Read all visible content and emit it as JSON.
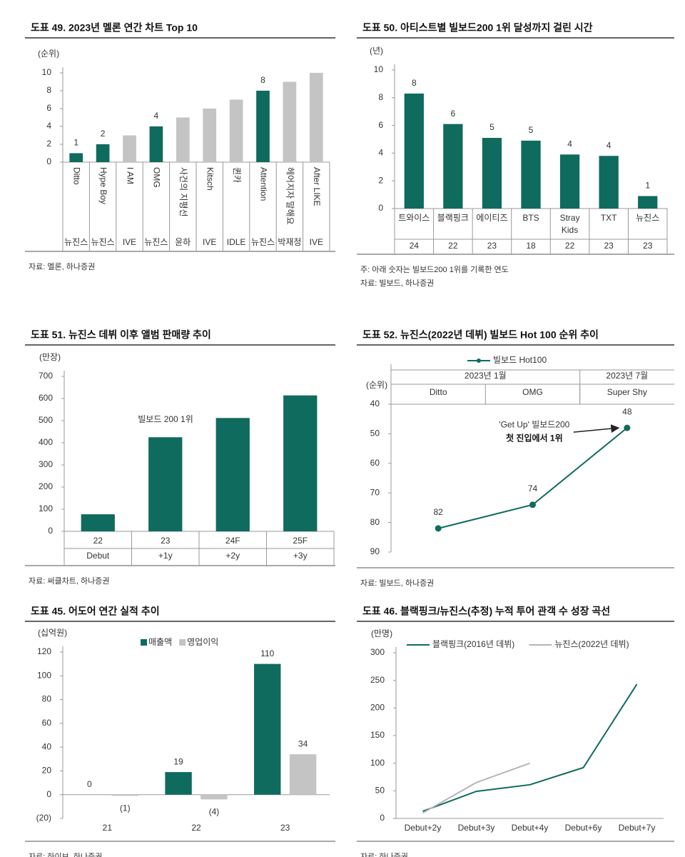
{
  "chart_data": [
    {
      "type": "bar",
      "title": "도표 49. 2023년 멜론 연간 차트 Top 10",
      "y_label": "(순위)",
      "categories": [
        "Ditto",
        "Hype Boy",
        "I AM",
        "OMG",
        "사건의 지평선",
        "Kitsch",
        "퀸카",
        "Attention",
        "헤어지자 말해요",
        "After LIKE"
      ],
      "sublabels": [
        "뉴진스",
        "뉴진스",
        "IVE",
        "뉴진스",
        "윤하",
        "IVE",
        "IDLE",
        "뉴진스",
        "박재정",
        "IVE"
      ],
      "values": [
        1,
        2,
        3,
        4,
        5,
        6,
        7,
        8,
        9,
        10
      ],
      "value_labels": [
        "1",
        "2",
        null,
        "4",
        null,
        null,
        null,
        "8",
        null,
        null
      ],
      "colors": [
        "#0f6b5e",
        "#0f6b5e",
        "#c4c4c4",
        "#0f6b5e",
        "#c4c4c4",
        "#c4c4c4",
        "#c4c4c4",
        "#0f6b5e",
        "#c4c4c4",
        "#c4c4c4"
      ],
      "rotate_labels": true,
      "ylim": [
        0,
        10
      ],
      "yticks": [
        0,
        2,
        4,
        6,
        8,
        10
      ],
      "source": "자료: 멜론, 하나증권"
    },
    {
      "type": "bar",
      "title": "도표 50. 아티스트별 빌보드200 1위 달성까지 걸린 시간",
      "y_label": "(년)",
      "categories": [
        "트와이스",
        "블랙핑크",
        "에이티즈",
        "BTS",
        "Stray Kids",
        "TXT",
        "뉴진스"
      ],
      "sublabels": [
        "24",
        "22",
        "23",
        "18",
        "22",
        "23",
        "23"
      ],
      "values": [
        8.3,
        6.1,
        5.1,
        4.9,
        3.9,
        3.8,
        0.9
      ],
      "value_labels": [
        "8",
        "6",
        "5",
        "5",
        "4",
        "4",
        "1"
      ],
      "color": "#0f6b5e",
      "ylim": [
        0,
        10
      ],
      "yticks": [
        0,
        2,
        4,
        6,
        8,
        10
      ],
      "note": "주: 아래 숫자는 빌보드200 1위를 기록한 연도",
      "source": "자료: 빌보드, 하나증권"
    },
    {
      "type": "bar",
      "title": "도표 51. 뉴진스 데뷔 이후 앨범 판매량 추이",
      "y_label": "(만장)",
      "categories": [
        "22",
        "23",
        "24F",
        "25F"
      ],
      "sublabels": [
        "Debut",
        "+1y",
        "+2y",
        "+3y"
      ],
      "values": [
        77,
        425,
        512,
        614
      ],
      "color": "#0f6b5e",
      "annotation": "빌보드 200 1위",
      "ylim": [
        0,
        700
      ],
      "yticks": [
        0,
        100,
        200,
        300,
        400,
        500,
        600,
        700
      ],
      "source": "자료: 써클차트, 하나증권"
    },
    {
      "type": "line",
      "title": "도표 52. 뉴진스(2022년 데뷔) 빌보드 Hot 100 순위 추이",
      "y_label": "(순위)",
      "categories": [
        "Ditto",
        "OMG",
        "Super Shy"
      ],
      "groups": [
        {
          "label": "2023년 1월",
          "span": 2
        },
        {
          "label": "2023년 7월",
          "span": 1
        }
      ],
      "series": [
        {
          "name": "빌보드 Hot100",
          "color": "#0f6b5e",
          "values": [
            82,
            74,
            48
          ],
          "markers": true
        }
      ],
      "data_labels": true,
      "annotations": [
        "'Get Up' 빌보드200",
        "첫 진입에서 1위"
      ],
      "ylim": [
        90,
        40
      ],
      "yticks": [
        40,
        50,
        60,
        70,
        80,
        90
      ],
      "legend": "top",
      "source": "자료: 빌보드, 하나증권"
    },
    {
      "type": "bar",
      "title": "도표 45. 어도어 연간 실적 추이",
      "y_label": "(십억원)",
      "categories": [
        "21",
        "22",
        "23"
      ],
      "series": [
        {
          "name": "매출액",
          "color": "#0f6b5e",
          "values": [
            0,
            19,
            110
          ]
        },
        {
          "name": "영업이익",
          "color": "#c4c4c4",
          "values": [
            -1,
            -4,
            34
          ],
          "value_labels": [
            "(1)",
            "(4)",
            "34"
          ]
        }
      ],
      "data_labels": true,
      "ylim": [
        -20,
        120
      ],
      "yticks": [
        {
          "value": -20,
          "label": "(20)"
        },
        0,
        20,
        40,
        60,
        80,
        100,
        120
      ],
      "legend": "top",
      "source": "자료: 하이브, 하나증권"
    },
    {
      "type": "line",
      "title": "도표 46. 블랙핑크/뉴진스(추정) 누적 투어 관객 수 성장 곡선",
      "y_label": "(만명)",
      "categories": [
        "Debut+2y",
        "Debut+3y",
        "Debut+4y",
        "Debut+6y",
        "Debut+7y"
      ],
      "series": [
        {
          "name": "블랙핑크(2016년 데뷔)",
          "color": "#0f6b5e",
          "values": [
            13,
            49,
            61,
            92,
            243
          ]
        },
        {
          "name": "뉴진스(2022년 데뷔)",
          "color": "#b4b4b4",
          "values": [
            10,
            65,
            100,
            null,
            null
          ]
        }
      ],
      "ylim": [
        0,
        300
      ],
      "yticks": [
        0,
        50,
        100,
        150,
        200,
        250,
        300
      ],
      "legend": "top",
      "source": "자료: 하나증권"
    }
  ]
}
